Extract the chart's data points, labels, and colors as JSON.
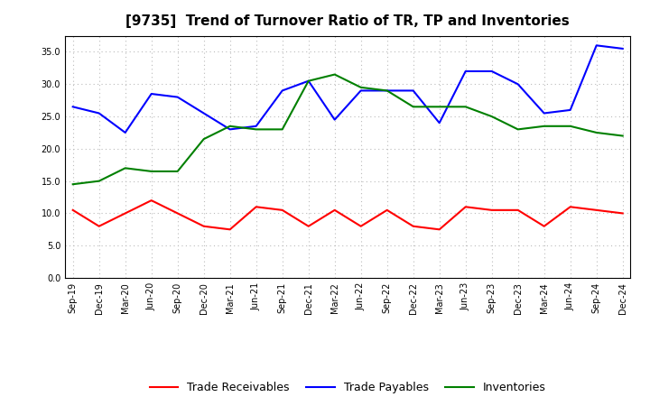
{
  "title": "[9735]  Trend of Turnover Ratio of TR, TP and Inventories",
  "x_labels": [
    "Sep-19",
    "Dec-19",
    "Mar-20",
    "Jun-20",
    "Sep-20",
    "Dec-20",
    "Mar-21",
    "Jun-21",
    "Sep-21",
    "Dec-21",
    "Mar-22",
    "Jun-22",
    "Sep-22",
    "Dec-22",
    "Mar-23",
    "Jun-23",
    "Sep-23",
    "Dec-23",
    "Mar-24",
    "Jun-24",
    "Sep-24",
    "Dec-24"
  ],
  "trade_receivables": [
    10.5,
    8.0,
    10.0,
    12.0,
    10.0,
    8.0,
    7.5,
    11.0,
    10.5,
    8.0,
    10.5,
    8.0,
    10.5,
    8.0,
    7.5,
    11.0,
    10.5,
    10.5,
    8.0,
    11.0,
    10.5,
    10.0
  ],
  "trade_payables": [
    26.5,
    25.5,
    22.5,
    28.5,
    28.0,
    25.5,
    23.0,
    23.5,
    29.0,
    30.5,
    24.5,
    29.0,
    29.0,
    29.0,
    24.0,
    32.0,
    32.0,
    30.0,
    25.5,
    26.0,
    36.0,
    35.5
  ],
  "inventories": [
    14.5,
    15.0,
    17.0,
    16.5,
    16.5,
    21.5,
    23.5,
    23.0,
    23.0,
    30.5,
    31.5,
    29.5,
    29.0,
    26.5,
    26.5,
    26.5,
    25.0,
    23.0,
    23.5,
    23.5,
    22.5,
    22.0
  ],
  "tr_color": "#ff0000",
  "tp_color": "#0000ff",
  "inv_color": "#008000",
  "ylim": [
    0.0,
    37.5
  ],
  "yticks": [
    0.0,
    5.0,
    10.0,
    15.0,
    20.0,
    25.0,
    30.0,
    35.0
  ],
  "background_color": "#ffffff",
  "grid_color": "#bbbbbb",
  "legend_tr": "Trade Receivables",
  "legend_tp": "Trade Payables",
  "legend_inv": "Inventories",
  "linewidth": 1.5,
  "title_fontsize": 11,
  "tick_fontsize": 7,
  "legend_fontsize": 9
}
